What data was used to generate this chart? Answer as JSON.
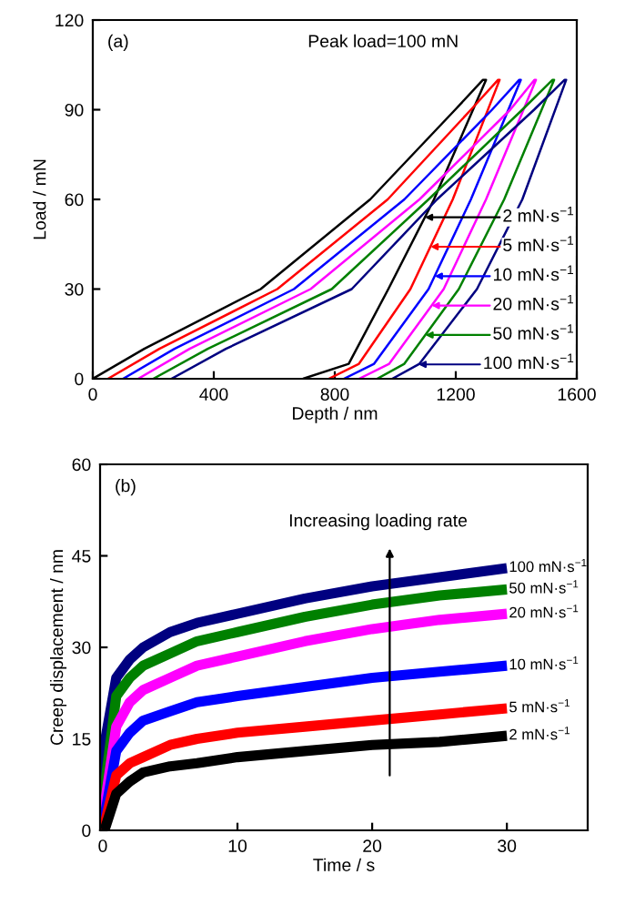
{
  "chart_data": [
    {
      "type": "line",
      "xlabel": "Depth / nm",
      "ylabel": "Load / mN",
      "xlim": [
        0,
        1600
      ],
      "ylim": [
        0,
        120
      ],
      "xticks": [
        0,
        400,
        800,
        1200,
        1600
      ],
      "yticks": [
        0,
        30,
        60,
        90,
        120
      ],
      "legend": "right",
      "grid": false,
      "marker": "none",
      "line_style": "solid",
      "series": [
        {
          "name": "2 mN·s$^{−1}$",
          "color": "#000000",
          "x": [
            0,
            170,
            555,
            917,
            1198,
            1290,
            1300,
            1128,
            977,
            846,
            695
          ],
          "values": [
            0,
            10,
            30,
            60,
            90,
            100,
            100,
            60,
            30,
            5,
            0
          ]
        },
        {
          "name": "5 mN·s$^{−1}$",
          "color": "#ff0000",
          "x": [
            50,
            220,
            610,
            975,
            1250,
            1340,
            1345,
            1190,
            1050,
            880,
            780
          ],
          "values": [
            0,
            10,
            30,
            60,
            90,
            100,
            100,
            60,
            30,
            5,
            0
          ]
        },
        {
          "name": "10 mN·s$^{−1}$",
          "color": "#0000ff",
          "x": [
            100,
            270,
            665,
            1030,
            1320,
            1410,
            1415,
            1250,
            1110,
            930,
            830
          ],
          "values": [
            0,
            10,
            30,
            60,
            90,
            100,
            100,
            60,
            30,
            5,
            0
          ]
        },
        {
          "name": "20 mN·s$^{−1}$",
          "color": "#ff00ff",
          "x": [
            150,
            320,
            720,
            1080,
            1380,
            1460,
            1465,
            1300,
            1160,
            980,
            880
          ],
          "values": [
            0,
            10,
            30,
            60,
            90,
            100,
            100,
            60,
            30,
            5,
            0
          ]
        },
        {
          "name": "50 mN·s$^{−1}$",
          "color": "#008000",
          "x": [
            200,
            380,
            790,
            1110,
            1420,
            1520,
            1525,
            1360,
            1210,
            1030,
            940
          ],
          "values": [
            0,
            10,
            30,
            60,
            90,
            100,
            100,
            60,
            30,
            5,
            0
          ]
        },
        {
          "name": "100 mN·s$^{−1}$",
          "color": "#000080",
          "x": [
            260,
            440,
            856,
            1138,
            1459,
            1560,
            1565,
            1420,
            1270,
            1080,
            990
          ],
          "values": [
            0,
            10,
            30,
            60,
            90,
            100,
            100,
            60,
            30,
            5,
            0
          ]
        }
      ],
      "annotations": [
        "(a)",
        "Peak load=100 mN"
      ]
    },
    {
      "type": "line",
      "xlabel": "Time / s",
      "ylabel": "Creep displacement / nm",
      "xlim": [
        -0.2,
        36
      ],
      "ylim": [
        0,
        60
      ],
      "xticks": [
        0,
        10,
        20,
        30
      ],
      "yticks": [
        0,
        15,
        30,
        45,
        60
      ],
      "grid": false,
      "marker": "none",
      "line_style": "solid",
      "x": [
        0,
        0.2,
        1,
        2,
        3,
        5,
        7,
        10,
        15,
        20,
        25,
        30
      ],
      "series": [
        {
          "name": "100 mN·s$^{−1}$",
          "color": "#000080",
          "values": [
            0,
            15,
            25,
            28,
            30,
            32.5,
            34,
            35.5,
            38,
            40,
            41.5,
            43
          ]
        },
        {
          "name": "50 mN·s$^{−1}$",
          "color": "#008000",
          "values": [
            0,
            8,
            22,
            25,
            27,
            29,
            31,
            32.5,
            35,
            37,
            38.5,
            39.5
          ]
        },
        {
          "name": "20 mN·s$^{−1}$",
          "color": "#ff00ff",
          "values": [
            0,
            5,
            17,
            21,
            23,
            25,
            27,
            28.5,
            31,
            33,
            34.5,
            35.5
          ]
        },
        {
          "name": "10 mN·s$^{−1}$",
          "color": "#0000ff",
          "values": [
            0,
            3,
            13,
            16,
            18,
            19.5,
            21,
            22,
            23.5,
            25,
            26,
            27
          ]
        },
        {
          "name": "5 mN·s$^{−1}$",
          "color": "#ff0000",
          "values": [
            0,
            1.5,
            9,
            11,
            12,
            14,
            15,
            16,
            17,
            18,
            19,
            20
          ]
        },
        {
          "name": "2 mN·s$^{−1}$",
          "color": "#000000",
          "values": [
            0,
            0.5,
            6,
            8,
            9.5,
            10.5,
            11,
            12,
            13,
            14,
            14.5,
            15.5
          ]
        }
      ],
      "annotations": [
        "(b)",
        "Increasing loading rate"
      ]
    }
  ]
}
